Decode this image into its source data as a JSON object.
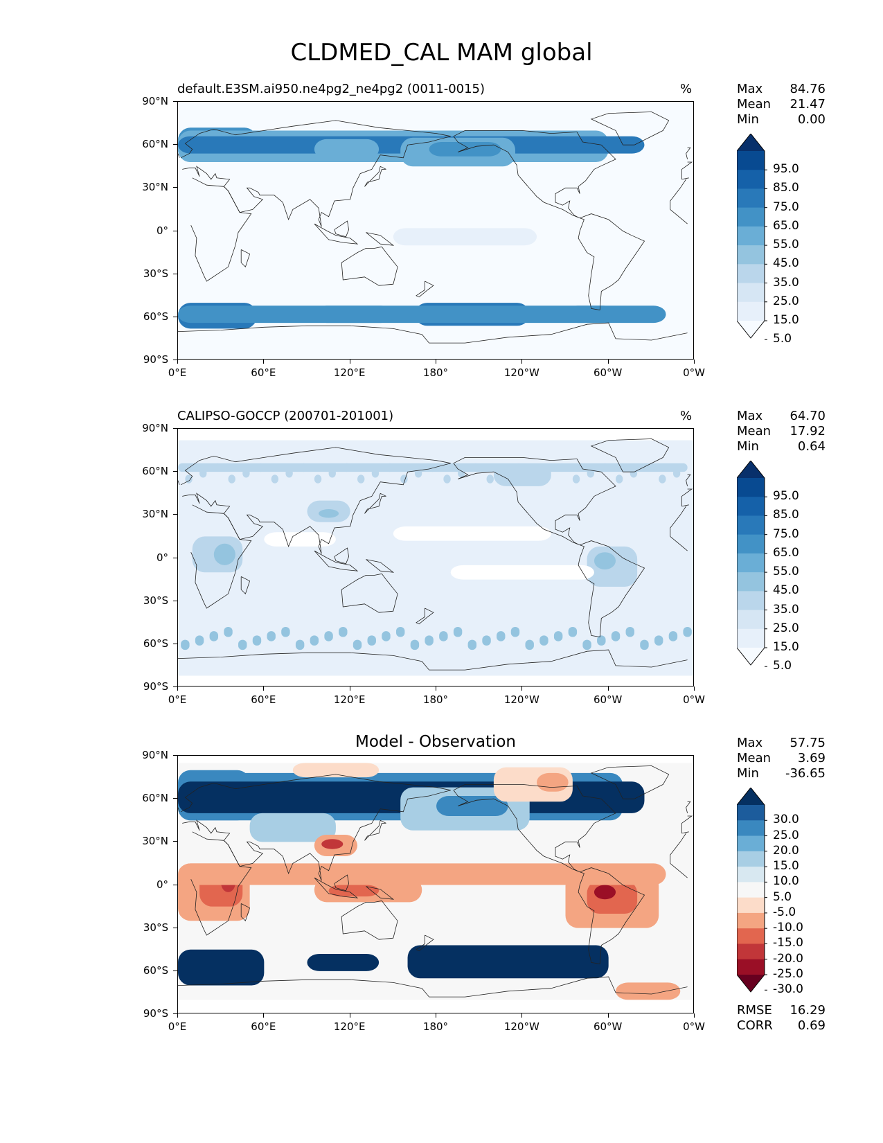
{
  "title": "CLDMED_CAL MAM global",
  "y_ticks": [
    "90°N",
    "60°N",
    "30°N",
    "0°",
    "30°S",
    "60°S",
    "90°S"
  ],
  "x_ticks": [
    "0°E",
    "60°E",
    "120°E",
    "180°",
    "120°W",
    "60°W",
    "0°W"
  ],
  "panels": [
    {
      "id": "model",
      "title_left": "default.E3SM.ai950.ne4pg2_ne4pg2 (0011-0015)",
      "title_right": "%",
      "stats": {
        "max_label": "Max",
        "max": "84.76",
        "mean_label": "Mean",
        "mean": "21.47",
        "min_label": "Min",
        "min": "0.00"
      },
      "colorbar_labels": [
        "95.0",
        "85.0",
        "75.0",
        "65.0",
        "55.0",
        "45.0",
        "35.0",
        "25.0",
        "15.0",
        "5.0"
      ],
      "colorbar_colors": [
        "#08306b",
        "#084a91",
        "#1561a9",
        "#2979b9",
        "#4292c6",
        "#6aaed6",
        "#94c4df",
        "#bad6eb",
        "#d6e6f4",
        "#e7f0fa",
        "#f7fbff"
      ]
    },
    {
      "id": "obs",
      "title_left": "CALIPSO-GOCCP (200701-201001)",
      "title_right": "%",
      "stats": {
        "max_label": "Max",
        "max": "64.70",
        "mean_label": "Mean",
        "mean": "17.92",
        "min_label": "Min",
        "min": "0.64"
      },
      "colorbar_labels": [
        "95.0",
        "85.0",
        "75.0",
        "65.0",
        "55.0",
        "45.0",
        "35.0",
        "25.0",
        "15.0",
        "5.0"
      ],
      "colorbar_colors": [
        "#08306b",
        "#084a91",
        "#1561a9",
        "#2979b9",
        "#4292c6",
        "#6aaed6",
        "#94c4df",
        "#bad6eb",
        "#d6e6f4",
        "#e7f0fa",
        "#f7fbff"
      ]
    },
    {
      "id": "diff",
      "title_center": "Model - Observation",
      "stats": {
        "max_label": "Max",
        "max": "57.75",
        "mean_label": "Mean",
        "mean": "3.69",
        "min_label": "Min",
        "min": "-36.65"
      },
      "colorbar_labels": [
        "30.0",
        "25.0",
        "20.0",
        "15.0",
        "10.0",
        "5.0",
        "-5.0",
        "-10.0",
        "-15.0",
        "-20.0",
        "-25.0",
        "-30.0"
      ],
      "colorbar_colors": [
        "#053061",
        "#1c5c9c",
        "#3a88bf",
        "#6aaed6",
        "#a8cee4",
        "#d8e8f1",
        "#f7f7f7",
        "#fcdcc9",
        "#f4a582",
        "#e2664f",
        "#c13639",
        "#9a0f26",
        "#67001f"
      ],
      "rmse_label": "RMSE",
      "rmse": "16.29",
      "corr_label": "CORR",
      "corr": "0.69"
    }
  ],
  "colors": {
    "coast": "#222222",
    "axis": "#000000"
  }
}
